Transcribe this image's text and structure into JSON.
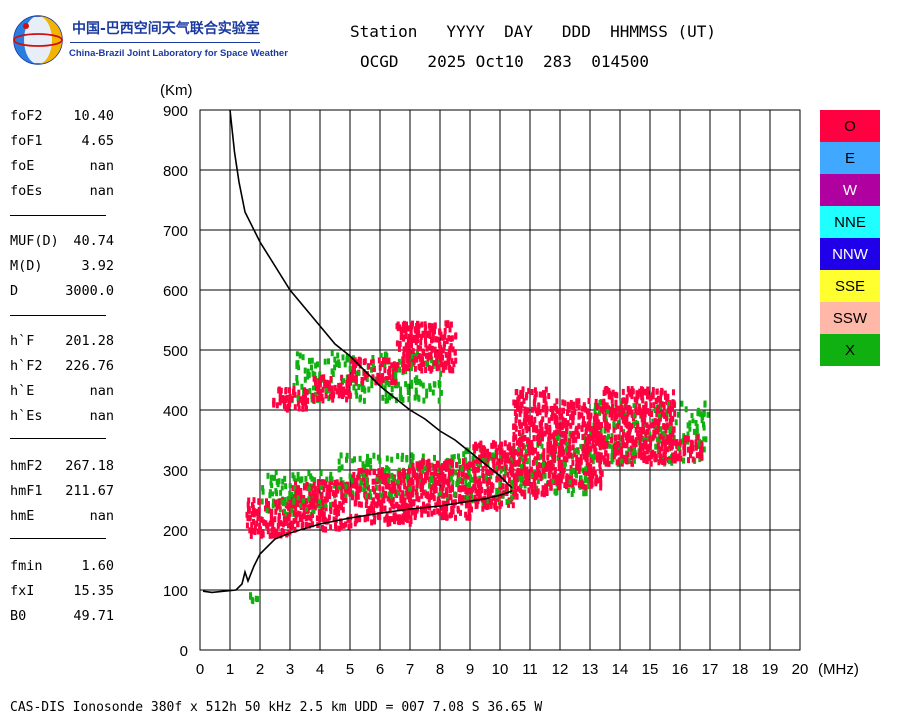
{
  "logo": {
    "cn_text": "中国-巴西空间天气联合实验室",
    "en_text": "China-Brazil Joint Laboratory for Space Weather"
  },
  "header": {
    "line1": "Station   YYYY  DAY   DDD  HHMMSS (UT)",
    "line2": "OCGD   2025 Oct10  283  014500"
  },
  "parameters": [
    {
      "label": "foF2",
      "value": "10.40"
    },
    {
      "label": "foF1",
      "value": "4.65"
    },
    {
      "label": "foE",
      "value": "nan"
    },
    {
      "label": "foEs",
      "value": "nan"
    },
    {
      "label": "MUF(D)",
      "value": "40.74"
    },
    {
      "label": "M(D)",
      "value": "3.92"
    },
    {
      "label": "D",
      "value": "3000.0"
    },
    {
      "label": "h`F",
      "value": "201.28"
    },
    {
      "label": "h`F2",
      "value": "226.76"
    },
    {
      "label": "h`E",
      "value": "nan"
    },
    {
      "label": "h`Es",
      "value": "nan"
    },
    {
      "label": "hmF2",
      "value": "267.18"
    },
    {
      "label": "hmF1",
      "value": "211.67"
    },
    {
      "label": "hmE",
      "value": "nan"
    },
    {
      "label": "fmin",
      "value": "1.60"
    },
    {
      "label": "fxI",
      "value": "15.35"
    },
    {
      "label": "B0",
      "value": "49.71"
    }
  ],
  "legend": [
    {
      "label": "O",
      "color": "#ff0040"
    },
    {
      "label": "E",
      "color": "#40a8ff"
    },
    {
      "label": "W",
      "color": "#b000a0"
    },
    {
      "label": "NNE",
      "color": "#20ffff"
    },
    {
      "label": "NNW",
      "color": "#2000e8"
    },
    {
      "label": "SSE",
      "color": "#ffff30"
    },
    {
      "label": "SSW",
      "color": "#ffb8a8"
    },
    {
      "label": "X",
      "color": "#10b010"
    }
  ],
  "footer": "CAS-DIS Ionosonde 380f x 512h 50 kHz 2.5 km UDD = 007 7.08 S 36.65 W",
  "chart_data": {
    "type": "scatter",
    "xlabel": "(MHz)",
    "ylabel": "(Km)",
    "xlim": [
      0,
      20
    ],
    "ylim": [
      0,
      900
    ],
    "xticks": [
      0,
      1,
      2,
      3,
      4,
      5,
      6,
      7,
      8,
      9,
      10,
      11,
      12,
      13,
      14,
      15,
      16,
      17,
      18,
      19,
      20
    ],
    "yticks": [
      0,
      100,
      200,
      300,
      400,
      500,
      600,
      700,
      800,
      900
    ],
    "grid": true,
    "series": [
      {
        "name": "O",
        "color": "#ff0040",
        "bands": [
          {
            "x": [
              1.5,
              3.0
            ],
            "y": [
              195,
              255
            ]
          },
          {
            "x": [
              3.0,
              5.0
            ],
            "y": [
              205,
              285
            ]
          },
          {
            "x": [
              5.0,
              7.0
            ],
            "y": [
              215,
              305
            ]
          },
          {
            "x": [
              7.0,
              9.0
            ],
            "y": [
              225,
              320
            ]
          },
          {
            "x": [
              9.0,
              10.4
            ],
            "y": [
              240,
              350
            ]
          },
          {
            "x": [
              10.4,
              11.6
            ],
            "y": [
              260,
              440
            ]
          },
          {
            "x": [
              11.6,
              13.4
            ],
            "y": [
              275,
              420
            ]
          },
          {
            "x": [
              13.4,
              15.8
            ],
            "y": [
              315,
              440
            ]
          },
          {
            "x": [
              15.8,
              16.7
            ],
            "y": [
              320,
              360
            ]
          },
          {
            "x": [
              2.4,
              3.6
            ],
            "y": [
              405,
              440
            ]
          },
          {
            "x": [
              3.6,
              5.0
            ],
            "y": [
              420,
              460
            ]
          },
          {
            "x": [
              5.0,
              6.5
            ],
            "y": [
              450,
              490
            ]
          },
          {
            "x": [
              6.5,
              8.5
            ],
            "y": [
              470,
              550
            ]
          }
        ]
      },
      {
        "name": "X",
        "color": "#10b010",
        "bands": [
          {
            "x": [
              2.0,
              4.5
            ],
            "y": [
              230,
              300
            ]
          },
          {
            "x": [
              4.5,
              8.0
            ],
            "y": [
              260,
              330
            ]
          },
          {
            "x": [
              8.0,
              10.6
            ],
            "y": [
              250,
              340
            ]
          },
          {
            "x": [
              10.6,
              13.0
            ],
            "y": [
              265,
              370
            ]
          },
          {
            "x": [
              13.0,
              16.9
            ],
            "y": [
              315,
              420
            ]
          },
          {
            "x": [
              3.0,
              8.0
            ],
            "y": [
              420,
              500
            ]
          },
          {
            "x": [
              1.6,
              1.9
            ],
            "y": [
              85,
              98
            ]
          }
        ]
      }
    ],
    "profile": {
      "name": "electron density profile",
      "color": "#000000",
      "x": [
        1.0,
        1.15,
        1.3,
        1.5,
        2.0,
        2.5,
        3.0,
        3.5,
        4.0,
        4.5,
        5.0,
        5.5,
        6.0,
        6.5,
        7.0,
        7.5,
        8.0,
        8.5,
        9.0,
        9.5,
        10.0,
        10.4
      ],
      "y": [
        900,
        830,
        780,
        730,
        680,
        640,
        600,
        570,
        540,
        510,
        490,
        465,
        440,
        420,
        400,
        385,
        365,
        350,
        330,
        310,
        290,
        270
      ]
    },
    "virtual_height_trace": {
      "name": "virtual height trace",
      "color": "#000000",
      "x": [
        0.1,
        0.4,
        0.8,
        1.2,
        1.4,
        1.5,
        1.6,
        1.8,
        2.0,
        2.5,
        3.0,
        4.0,
        5.0,
        6.0,
        7.0,
        8.0,
        9.0,
        9.5,
        10.0,
        10.4
      ],
      "y": [
        98,
        96,
        98,
        100,
        110,
        130,
        115,
        140,
        160,
        185,
        195,
        210,
        220,
        228,
        235,
        240,
        248,
        252,
        258,
        265
      ]
    }
  }
}
